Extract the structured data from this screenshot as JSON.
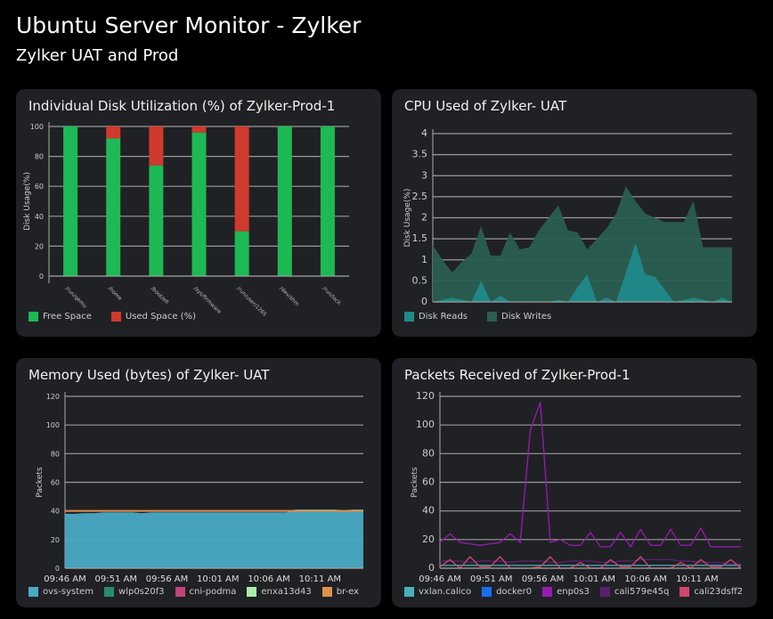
{
  "header": {
    "title": "Ubuntu  Server Monitor - Zylker",
    "subtitle": "Zylker UAT and Prod"
  },
  "chart_data": [
    {
      "id": "disk",
      "type": "bar",
      "stacked": true,
      "title": "Individual Disk Utilization (%) of Zylker-Prod-1",
      "ylabel": "Disk Usage(%)",
      "ylim": [
        0,
        100
      ],
      "yticks": [
        0,
        20,
        40,
        60,
        80,
        100
      ],
      "grid": true,
      "legend": "bottom-left",
      "categories": [
        "/run/qemu",
        "/home",
        "/boot/efi",
        "/sys/firmware",
        "/run/user/1265",
        "/dev/shm",
        "/run/lock"
      ],
      "series": [
        {
          "name": "Free Space",
          "color": "#1db954",
          "values": [
            100,
            92,
            74,
            96,
            30,
            100,
            100
          ]
        },
        {
          "name": "Used Space (%)",
          "color": "#d03a2c",
          "values": [
            0,
            8,
            26,
            4,
            70,
            0,
            0
          ]
        }
      ]
    },
    {
      "id": "cpu",
      "type": "area",
      "title": "CPU Used of Zylker- UAT",
      "ylabel": "Disk Usage(%)",
      "ylim": [
        0,
        4
      ],
      "yticks": [
        0,
        0.5,
        1,
        1.5,
        2,
        2.5,
        3,
        3.5,
        4
      ],
      "grid": true,
      "legend": "bottom-left",
      "series": [
        {
          "name": "Disk Reads",
          "color": "#1f8a8a",
          "values": [
            0,
            0.05,
            0.1,
            0.05,
            0,
            0.5,
            0,
            0.15,
            0,
            0,
            0,
            0,
            0,
            0.05,
            0,
            0.35,
            0.65,
            0,
            0.1,
            0,
            0.7,
            1.4,
            0.65,
            0.6,
            0.3,
            0,
            0.05,
            0.1,
            0.05,
            0,
            0.1,
            0
          ]
        },
        {
          "name": "Disk Writes",
          "color": "#2a5e50",
          "values": [
            1.35,
            1.0,
            0.7,
            0.95,
            1.15,
            1.8,
            1.1,
            1.1,
            1.65,
            1.25,
            1.3,
            1.7,
            2.0,
            2.3,
            1.7,
            1.65,
            1.25,
            1.5,
            1.75,
            2.1,
            2.75,
            2.4,
            2.1,
            2.0,
            1.9,
            1.9,
            1.9,
            2.4,
            1.3,
            1.3,
            1.3,
            1.3
          ]
        }
      ]
    },
    {
      "id": "mem",
      "type": "area",
      "title": "Memory Used (bytes) of Zylker- UAT",
      "ylabel": "Packets",
      "ylim": [
        0,
        120
      ],
      "yticks": [
        0,
        20,
        40,
        60,
        80,
        100,
        120
      ],
      "grid": true,
      "legend": "bottom-left",
      "xticks": [
        "09:46 AM",
        "09:51 AM",
        "09:56 AM",
        "10:01 AM",
        "10:06 AM",
        "10:11 AM"
      ],
      "series": [
        {
          "name": "ovs-system",
          "color": "#4aaac4",
          "values": [
            38,
            38,
            38.5,
            38.5,
            39,
            39,
            39,
            39,
            38.5,
            39,
            39,
            39,
            39,
            39,
            39,
            39,
            39,
            39,
            39,
            39,
            39,
            39,
            39,
            39,
            41,
            41,
            41,
            41,
            41,
            40.5,
            41,
            41
          ]
        },
        {
          "name": "wlp0s20f3",
          "color": "#2a8a70",
          "values": []
        },
        {
          "name": "cni-podma",
          "color": "#c0447a",
          "values": []
        },
        {
          "name": "enxa13d43",
          "color": "#a8f0a8",
          "values": []
        },
        {
          "name": "br-ex",
          "color": "#e0904a",
          "values": [
            40,
            40,
            40,
            40,
            40,
            40,
            40,
            40,
            40,
            40,
            40,
            40,
            40,
            40,
            40,
            40,
            40,
            40,
            40,
            40,
            40,
            40,
            40,
            40,
            40,
            40,
            40,
            40,
            40,
            40,
            40,
            40
          ]
        }
      ]
    },
    {
      "id": "pkt",
      "type": "line",
      "title": "Packets Received of Zylker-Prod-1",
      "ylabel": "Packets",
      "ylim": [
        0,
        120
      ],
      "yticks": [
        0,
        20,
        40,
        60,
        80,
        100,
        120
      ],
      "grid": true,
      "legend": "bottom-left",
      "xticks": [
        "09:46 AM",
        "09:51 AM",
        "09:56 AM",
        "10:01 AM",
        "10:06 AM",
        "10:11 AM"
      ],
      "series": [
        {
          "name": "vxlan.calico",
          "color": "#4ab0b8",
          "values": [
            2,
            2,
            2,
            2,
            2,
            2,
            2,
            2,
            2,
            2,
            2,
            2,
            2,
            2,
            2,
            2,
            2,
            2,
            2,
            2,
            2,
            2,
            2,
            2,
            2,
            2,
            2,
            2,
            2,
            2,
            2
          ]
        },
        {
          "name": "docker0",
          "color": "#1a6cf0",
          "values": []
        },
        {
          "name": "enp0s3",
          "color": "#9a1ab0",
          "values": [
            18,
            24,
            18,
            17,
            16,
            17,
            18,
            24,
            18,
            96,
            116,
            18,
            20,
            16,
            16,
            25,
            15,
            15,
            25,
            15,
            27,
            16,
            16,
            27,
            16,
            16,
            28,
            15,
            15,
            15,
            15
          ]
        },
        {
          "name": "cali579e45q",
          "color": "#5a2070",
          "values": [
            5,
            5,
            5,
            4,
            5,
            5,
            5,
            4,
            5,
            5,
            5,
            4,
            4,
            5,
            5,
            5,
            4,
            4,
            5,
            5,
            6,
            6,
            6,
            6,
            5,
            5,
            4,
            4,
            4,
            3,
            3
          ]
        },
        {
          "name": "cali23dsff2",
          "color": "#d04870",
          "values": [
            1,
            6,
            0,
            8,
            1,
            1,
            8,
            0,
            0,
            0,
            1,
            8,
            0,
            0,
            4,
            0,
            0,
            6,
            1,
            1,
            8,
            0,
            0,
            0,
            4,
            0,
            6,
            1,
            1,
            6,
            0
          ]
        }
      ]
    }
  ]
}
